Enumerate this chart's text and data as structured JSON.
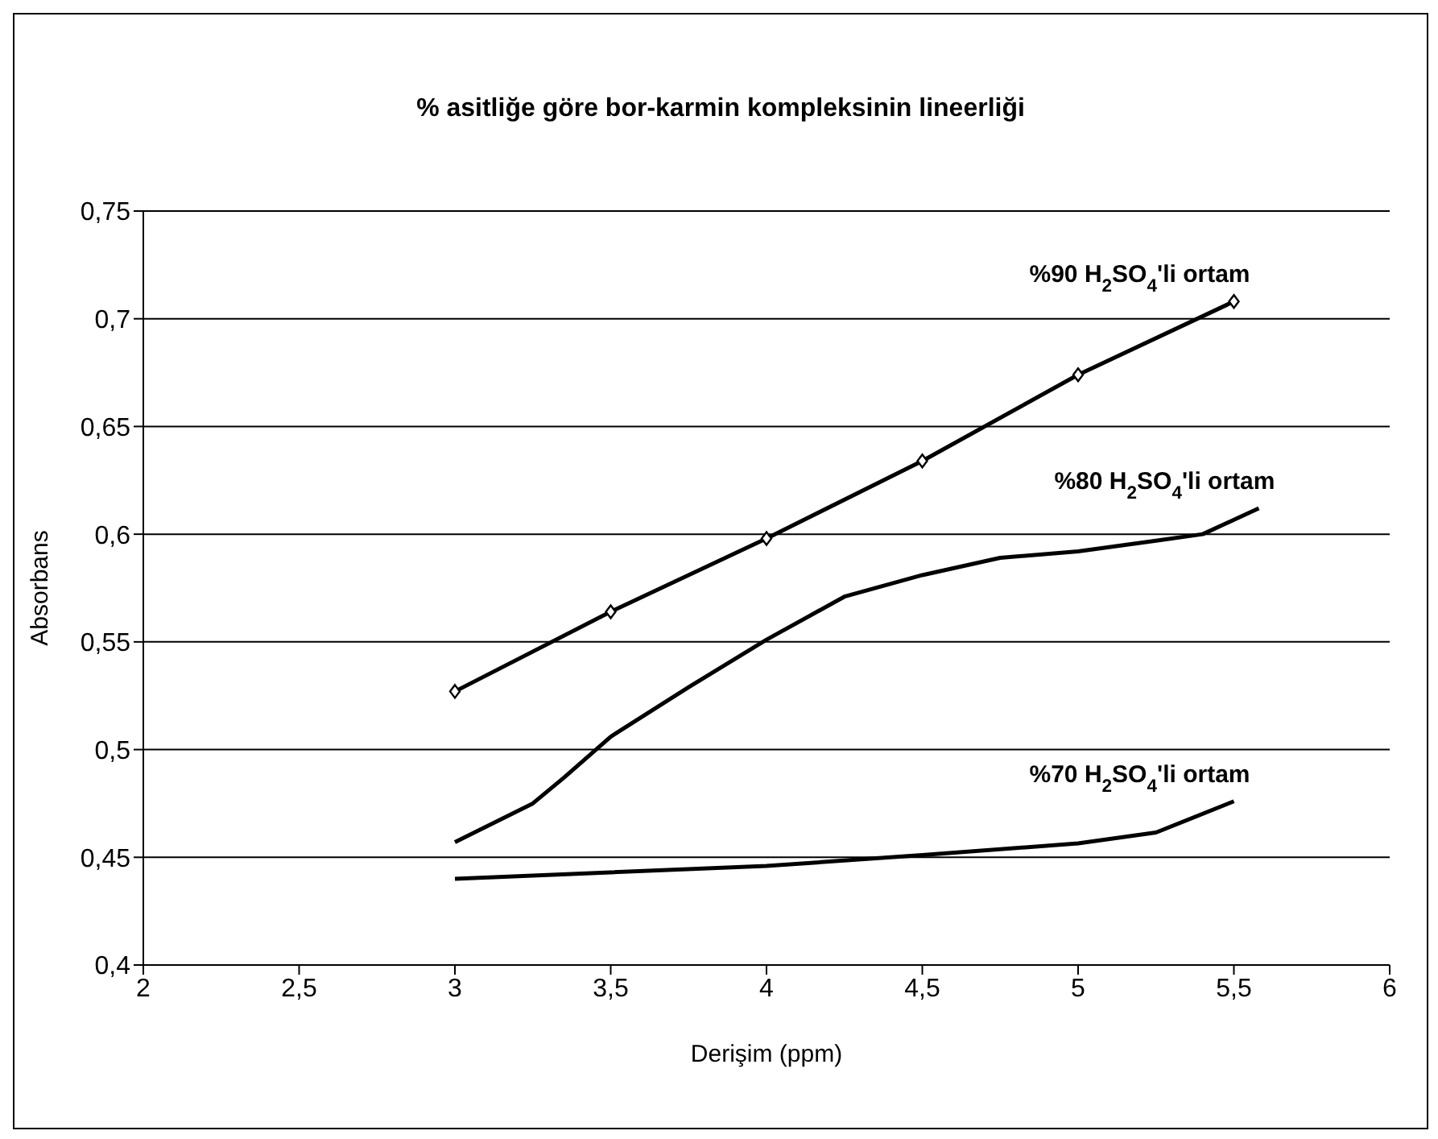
{
  "chart_data": {
    "type": "line",
    "title": "% asitliğe göre bor-karmin kompleksinin lineerliği",
    "xlabel": "Derişim (ppm)",
    "ylabel": "Absorbans",
    "xlim": [
      2,
      6
    ],
    "xticks": [
      2,
      {
        "value": 2.5,
        "label": "2,5"
      },
      3,
      {
        "value": 3.5,
        "label": "3,5"
      },
      4,
      {
        "value": 4.5,
        "label": "4,5"
      },
      5,
      {
        "value": 5.5,
        "label": "5,5"
      },
      6
    ],
    "ylim": [
      0.4,
      0.75
    ],
    "yticks": [
      {
        "value": 0.4,
        "label": "0,4"
      },
      {
        "value": 0.45,
        "label": "0,45"
      },
      {
        "value": 0.5,
        "label": "0,5"
      },
      {
        "value": 0.55,
        "label": "0,55"
      },
      {
        "value": 0.6,
        "label": "0,6"
      },
      {
        "value": 0.65,
        "label": "0,65"
      },
      {
        "value": 0.7,
        "label": "0,7"
      },
      {
        "value": 0.75,
        "label": "0,75"
      }
    ],
    "grid": "y",
    "legend": false,
    "series": [
      {
        "name": "%90 H$_{2}$SO$_{4}$'li ortam",
        "color": "#000000",
        "marker": "diamond",
        "x": [
          3,
          3.5,
          4,
          4.5,
          5,
          5.5
        ],
        "values": [
          0.527,
          0.564,
          0.598,
          0.634,
          0.674,
          0.708
        ]
      },
      {
        "name": "%80 H$_{2}$SO$_{4}$'li ortam",
        "color": "#000000",
        "marker": "none",
        "x": [
          3,
          3.25,
          3.35,
          3.5,
          3.75,
          4,
          4.25,
          4.5,
          4.75,
          5,
          5.25,
          5.4,
          5.58
        ],
        "values": [
          0.457,
          0.475,
          0.487,
          0.506,
          0.529,
          0.551,
          0.571,
          0.581,
          0.589,
          0.592,
          0.597,
          0.6,
          0.612
        ]
      },
      {
        "name": "%70 H$_{2}$SO$_{4}$'li ortam",
        "color": "#000000",
        "marker": "none",
        "x": [
          3,
          3.5,
          4,
          4.5,
          5,
          5.25,
          5.5
        ],
        "values": [
          0.44,
          0.443,
          0.446,
          0.451,
          0.4565,
          0.4615,
          0.476
        ]
      }
    ]
  }
}
